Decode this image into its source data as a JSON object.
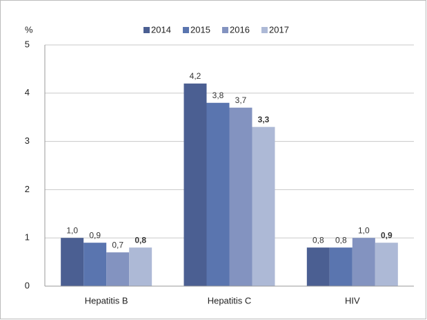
{
  "chart_data": {
    "type": "bar",
    "y_unit_label": "%",
    "categories": [
      "Hepatitis B",
      "Hepatitis C",
      "HIV"
    ],
    "series": [
      {
        "name": "2014",
        "color": "#4b5f92",
        "values": [
          1.0,
          4.2,
          0.8
        ],
        "value_labels": [
          "1,0",
          "4,2",
          "0,8"
        ],
        "label_bold": false
      },
      {
        "name": "2015",
        "color": "#5a75af",
        "values": [
          0.9,
          3.8,
          0.8
        ],
        "value_labels": [
          "0,9",
          "3,8",
          "0,8"
        ],
        "label_bold": false
      },
      {
        "name": "2016",
        "color": "#8393c0",
        "values": [
          0.7,
          3.7,
          1.0
        ],
        "value_labels": [
          "0,7",
          "3,7",
          "1,0"
        ],
        "label_bold": false
      },
      {
        "name": "2017",
        "color": "#adb9d6",
        "values": [
          0.8,
          3.3,
          0.9
        ],
        "value_labels": [
          "0,8",
          "3,3",
          "0,9"
        ],
        "label_bold": true
      }
    ],
    "ylim": [
      0,
      5
    ],
    "yticks": [
      0,
      1,
      2,
      3,
      4,
      5
    ],
    "grid": true,
    "legend": "top"
  }
}
